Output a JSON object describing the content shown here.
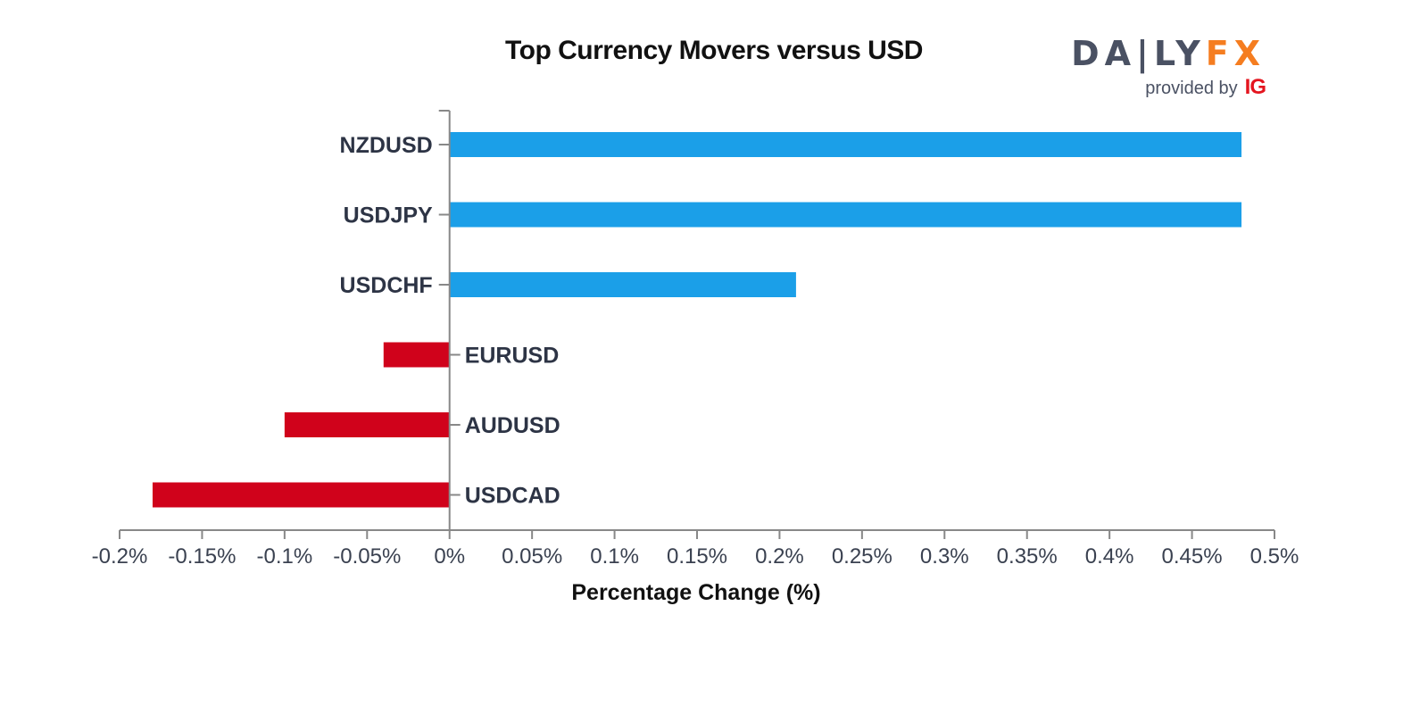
{
  "brand": {
    "wordmark_daily": "DA|LY",
    "wordmark_fx": "FX",
    "tagline": "provided by",
    "tagline_ig": "IG"
  },
  "colors": {
    "positive": "#1b9fe8",
    "negative": "#d0021b",
    "axis": "#888888"
  },
  "chart_data": {
    "type": "bar",
    "orientation": "horizontal",
    "title": "Top Currency Movers versus USD",
    "xlabel": "Percentage Change (%)",
    "ylabel": "",
    "xlim": [
      -0.2,
      0.5
    ],
    "xticks": [
      -0.2,
      -0.15,
      -0.1,
      -0.05,
      0,
      0.05,
      0.1,
      0.15,
      0.2,
      0.25,
      0.3,
      0.35,
      0.4,
      0.45,
      0.5
    ],
    "xtick_labels": [
      "-0.2%",
      "-0.15%",
      "-0.1%",
      "-0.05%",
      "0%",
      "0.05%",
      "0.1%",
      "0.15%",
      "0.2%",
      "0.25%",
      "0.3%",
      "0.35%",
      "0.4%",
      "0.45%",
      "0.5%"
    ],
    "categories": [
      "NZDUSD",
      "USDJPY",
      "USDCHF",
      "EURUSD",
      "AUDUSD",
      "USDCAD"
    ],
    "values": [
      0.48,
      0.48,
      0.21,
      -0.04,
      -0.1,
      -0.18
    ],
    "grid": false,
    "legend": "none"
  }
}
